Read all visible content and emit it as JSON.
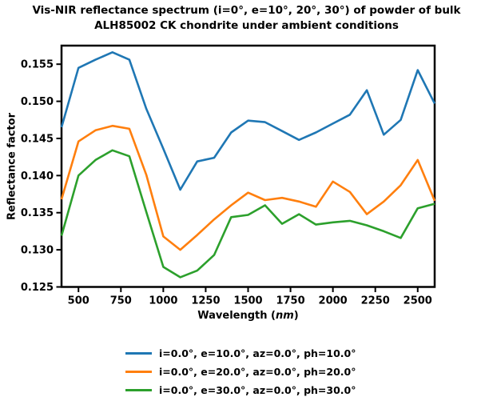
{
  "figure": {
    "title_line1": "Vis-NIR reflectance spectrum (i=0°, e=10°, 20°, 30°) of powder of bulk",
    "title_line2": "ALH85002 CK chondrite under ambient conditions"
  },
  "axes": {
    "y_label": "Reflectance factor",
    "x_label_prefix": "Wavelength (",
    "x_label_unit": "nm",
    "x_label_suffix": ")"
  },
  "legend": {
    "items": [
      {
        "label": "i=0.0°, e=10.0°, az=0.0°, ph=10.0°",
        "color": "#1f77b4"
      },
      {
        "label": "i=0.0°, e=20.0°, az=0.0°, ph=20.0°",
        "color": "#ff7f0e"
      },
      {
        "label": "i=0.0°, e=30.0°, az=0.0°, ph=30.0°",
        "color": "#2ca02c"
      }
    ]
  },
  "chart_data": {
    "type": "line",
    "title": "Vis-NIR reflectance spectrum (i=0°, e=10°, 20°, 30°) of powder of bulk ALH85002 CK chondrite under ambient conditions",
    "xlabel": "Wavelength (nm)",
    "ylabel": "Reflectance factor",
    "xlim": [
      400,
      2600
    ],
    "ylim": [
      0.125,
      0.1575
    ],
    "x_ticks": [
      500,
      750,
      1000,
      1250,
      1500,
      1750,
      2000,
      2250,
      2500
    ],
    "y_ticks": [
      0.125,
      0.13,
      0.135,
      0.14,
      0.145,
      0.15,
      0.155
    ],
    "grid": false,
    "legend_position": "below",
    "x": [
      400,
      500,
      600,
      700,
      800,
      900,
      1000,
      1100,
      1200,
      1300,
      1400,
      1500,
      1600,
      1700,
      1800,
      1900,
      2000,
      2100,
      2200,
      2300,
      2400,
      2500,
      2600
    ],
    "series": [
      {
        "name": "i=0.0°, e=10.0°, az=0.0°, ph=10.0°",
        "color": "#1f77b4",
        "values": [
          0.1465,
          0.1545,
          0.1556,
          0.1566,
          0.1556,
          0.149,
          0.1436,
          0.1381,
          0.1419,
          0.1424,
          0.1458,
          0.1474,
          0.1472,
          0.146,
          0.1448,
          0.1458,
          0.147,
          0.1482,
          0.1515,
          0.1455,
          0.1475,
          0.1542,
          0.1497
        ]
      },
      {
        "name": "i=0.0°, e=20.0°, az=0.0°, ph=20.0°",
        "color": "#ff7f0e",
        "values": [
          0.1368,
          0.1446,
          0.1461,
          0.1467,
          0.1463,
          0.1401,
          0.1318,
          0.13,
          0.132,
          0.1341,
          0.136,
          0.1377,
          0.1367,
          0.137,
          0.1365,
          0.1358,
          0.1392,
          0.1378,
          0.1348,
          0.1365,
          0.1387,
          0.1421,
          0.1366
        ]
      },
      {
        "name": "i=0.0°, e=30.0°, az=0.0°, ph=30.0°",
        "color": "#2ca02c",
        "values": [
          0.1319,
          0.14,
          0.1421,
          0.1434,
          0.1426,
          0.1351,
          0.1277,
          0.1263,
          0.1272,
          0.1293,
          0.1344,
          0.1347,
          0.136,
          0.1335,
          0.1348,
          0.1334,
          0.1337,
          0.1339,
          0.1333,
          0.1325,
          0.1316,
          0.1356,
          0.1362
        ]
      }
    ]
  }
}
